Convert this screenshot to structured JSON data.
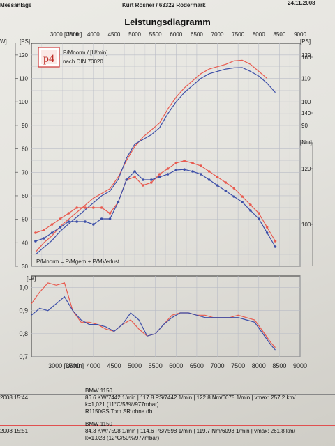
{
  "header": {
    "left": "Messanlage",
    "center": "Kurt Rösner  /  63322 Rödermark",
    "right": "24.11.2008"
  },
  "title": "Leistungsdiagramm",
  "legend_box": {
    "logo_text": "p4",
    "line1": "P/Mnorm / [U/min]",
    "line2": "nach DIN 70020"
  },
  "formula": "P/Mnorm = P/Mgem + P/MVerlust",
  "colors": {
    "run1": "#e85a4f",
    "run2": "#3d4fa8",
    "grid": "#b9bcc6",
    "frame": "#333333"
  },
  "runs": [
    {
      "date": "2008   15:44",
      "name": "BMW 1150",
      "stats": "86.6 KW/7442 1/min   |  117.8 PS/7442 1/min  |   122.8 Nm/6075 1/min | vmax: 257.2 km/",
      "cond": "k=1,021 (11°C/53%/977mbar)",
      "note": "R1150GS Tom SR ohne db"
    },
    {
      "date": "2008   15:51",
      "name": "BMW 1150",
      "stats": "84.3 KW/7598 1/min   |  114.6 PS/7598 1/min  |   119.7 Nm/6093 1/min | vmax: 261.8 km/",
      "cond": "k=1,023 (12°C/50%/977mbar)",
      "note": ""
    }
  ],
  "chart_data": [
    {
      "type": "line",
      "title": "Leistungsdiagramm",
      "x_unit": "[U/min]",
      "xlim": [
        2500,
        9000
      ],
      "x_ticks": [
        "3000 [U/min]",
        "3500",
        "4000",
        "4500",
        "5000",
        "5500",
        "6000",
        "6500",
        "7000",
        "7500",
        "8000",
        "8500",
        "9000"
      ],
      "y_left_label": "[PS]",
      "y_left_ticks": [
        "30",
        "40",
        "50",
        "60",
        "70",
        "80",
        "90",
        "100",
        "110",
        "120"
      ],
      "ylim_ps": [
        30,
        125
      ],
      "y_far_left_label": "W]",
      "y_right_label": "[PS]",
      "y_right_ticks": [
        "90",
        "100",
        "110",
        "120"
      ],
      "y_nm_label": "[Nm]",
      "y_nm_ticks": [
        "100",
        "120",
        "140",
        "160"
      ],
      "ylim_nm": [
        85,
        165
      ],
      "grid": true,
      "series": [
        {
          "kind": "power",
          "x": [
            2600,
            2800,
            3000,
            3200,
            3400,
            3600,
            3800,
            4000,
            4200,
            4400,
            4600,
            4800,
            5000,
            5200,
            5400,
            5600,
            5800,
            6000,
            6200,
            6400,
            6600,
            6800,
            7000,
            7200,
            7400,
            7600,
            7800,
            8000,
            8200
          ],
          "y": [
            36,
            40,
            43,
            47,
            50,
            53,
            56,
            59,
            61,
            63,
            68,
            75,
            81,
            85,
            88,
            91,
            97,
            102,
            106,
            109,
            112,
            114,
            115,
            116,
            117.5,
            117.8,
            116,
            113,
            110
          ]
        },
        {
          "kind": "power",
          "x": [
            2600,
            2800,
            3000,
            3200,
            3400,
            3600,
            3800,
            4000,
            4200,
            4400,
            4600,
            4800,
            5000,
            5200,
            5400,
            5600,
            5800,
            6000,
            6200,
            6400,
            6600,
            6800,
            7000,
            7200,
            7400,
            7600,
            7800,
            8000,
            8200,
            8400
          ],
          "y": [
            35,
            38,
            41,
            45,
            48,
            51,
            54,
            57,
            60,
            62,
            67,
            76,
            82,
            84,
            86,
            89,
            95,
            100,
            104,
            107,
            110,
            112,
            113,
            114,
            114.5,
            114.6,
            113,
            111,
            108,
            104
          ]
        },
        {
          "kind": "torque",
          "x": [
            2600,
            2800,
            3000,
            3200,
            3400,
            3600,
            3800,
            4000,
            4200,
            4400,
            4600,
            4800,
            5000,
            5200,
            5400,
            5600,
            5800,
            6000,
            6200,
            6400,
            6600,
            6800,
            7000,
            7200,
            7400,
            7600,
            7800,
            8000,
            8200,
            8400
          ],
          "y": [
            97,
            98,
            100,
            102,
            104,
            106,
            106,
            106,
            106,
            104,
            108,
            116,
            117,
            114,
            115,
            118,
            120,
            122,
            122.8,
            122,
            121,
            119,
            117,
            115,
            113,
            110,
            107,
            104,
            99,
            94
          ]
        },
        {
          "kind": "torque",
          "x": [
            2600,
            2800,
            3000,
            3200,
            3400,
            3600,
            3800,
            4000,
            4200,
            4400,
            4600,
            4800,
            5000,
            5200,
            5400,
            5600,
            5800,
            6000,
            6200,
            6400,
            6600,
            6800,
            7000,
            7200,
            7400,
            7600,
            7800,
            8000,
            8200,
            8400
          ],
          "y": [
            94,
            95,
            97,
            99,
            101,
            101,
            101,
            100,
            102,
            102,
            108,
            116,
            119,
            116,
            116,
            117,
            118,
            119.5,
            119.7,
            119,
            118,
            116,
            114,
            112,
            110,
            108,
            105,
            102,
            97,
            92
          ]
        }
      ]
    },
    {
      "type": "line",
      "y_label": "[La]",
      "xlim": [
        2500,
        9000
      ],
      "x_ticks": [
        "3000 [U/min]",
        "3500",
        "4000",
        "4500",
        "5000",
        "5500",
        "6000",
        "6500",
        "7000",
        "7500",
        "8000",
        "8500",
        "9000"
      ],
      "ylim": [
        0.7,
        1.05
      ],
      "y_ticks": [
        "0,7",
        "0,8",
        "0,9",
        "1,0"
      ],
      "grid": true,
      "series": [
        {
          "x": [
            2500,
            2700,
            2900,
            3100,
            3300,
            3500,
            3700,
            3900,
            4100,
            4300,
            4500,
            4700,
            4900,
            5100,
            5300,
            5500,
            5700,
            5900,
            6100,
            6300,
            6500,
            6700,
            6900,
            7100,
            7300,
            7500,
            7700,
            7900,
            8100,
            8300,
            8400
          ],
          "y": [
            0.93,
            0.98,
            1.02,
            1.01,
            1.02,
            0.9,
            0.85,
            0.85,
            0.84,
            0.82,
            0.81,
            0.84,
            0.86,
            0.82,
            0.79,
            0.8,
            0.84,
            0.88,
            0.89,
            0.89,
            0.88,
            0.88,
            0.87,
            0.87,
            0.87,
            0.88,
            0.87,
            0.86,
            0.81,
            0.76,
            0.74
          ]
        },
        {
          "x": [
            2500,
            2700,
            2900,
            3100,
            3300,
            3500,
            3700,
            3900,
            4100,
            4300,
            4500,
            4700,
            4900,
            5100,
            5300,
            5500,
            5700,
            5900,
            6100,
            6300,
            6500,
            6700,
            6900,
            7100,
            7300,
            7500,
            7700,
            7900,
            8100,
            8300,
            8400
          ],
          "y": [
            0.88,
            0.91,
            0.9,
            0.93,
            0.96,
            0.9,
            0.86,
            0.84,
            0.84,
            0.83,
            0.81,
            0.84,
            0.89,
            0.86,
            0.79,
            0.8,
            0.84,
            0.87,
            0.89,
            0.89,
            0.88,
            0.87,
            0.87,
            0.87,
            0.87,
            0.87,
            0.86,
            0.85,
            0.8,
            0.75,
            0.73
          ]
        }
      ]
    }
  ]
}
